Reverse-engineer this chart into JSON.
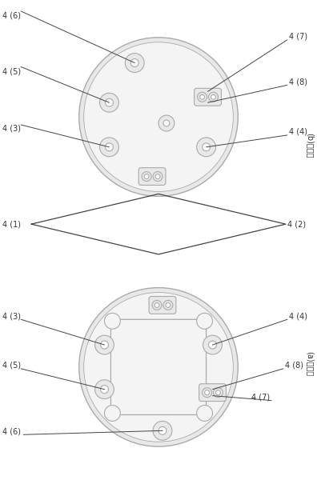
{
  "bg_color": "#ffffff",
  "line_color": "#aaaaaa",
  "text_color": "#333333",
  "fig_width": 3.96,
  "fig_height": 6.0,
  "dpi": 100
}
